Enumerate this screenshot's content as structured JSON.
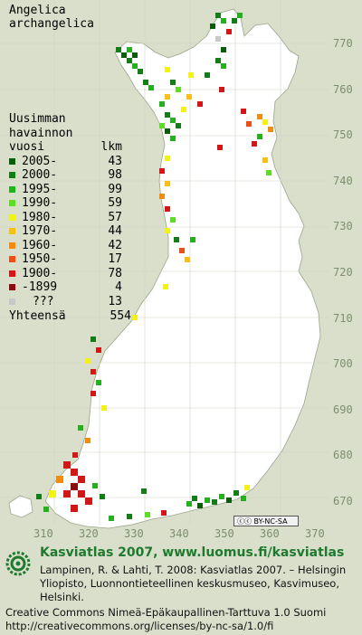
{
  "species": {
    "line1": "Angelica",
    "line2": "archangelica"
  },
  "legend": {
    "header": [
      "Uusimman",
      "havainnon"
    ],
    "col_left": "vuosi",
    "col_right": "lkm",
    "rows": [
      {
        "label": "2005-",
        "count": "43",
        "color": "#0a5e0a"
      },
      {
        "label": "2000-",
        "count": "98",
        "color": "#157d15"
      },
      {
        "label": "1995-",
        "count": "99",
        "color": "#26b01f"
      },
      {
        "label": "1990-",
        "count": "59",
        "color": "#5edc28"
      },
      {
        "label": "1980-",
        "count": "57",
        "color": "#f2f21a"
      },
      {
        "label": "1970-",
        "count": "44",
        "color": "#f6c01a"
      },
      {
        "label": "1960-",
        "count": "42",
        "color": "#f08c12"
      },
      {
        "label": "1950-",
        "count": "17",
        "color": "#e8501a"
      },
      {
        "label": "1900-",
        "count": "78",
        "color": "#d01818"
      },
      {
        "label": "-1899",
        "count": "4",
        "color": "#8a0e0e"
      },
      {
        "label": "???",
        "count": "13",
        "color": "#c8c8c8"
      }
    ],
    "total_label": "Yhteensä",
    "total_count": "554"
  },
  "axis": {
    "y_ticks": [
      "770",
      "760",
      "750",
      "740",
      "730",
      "720",
      "710",
      "700",
      "690",
      "680",
      "670"
    ],
    "x_ticks": [
      "310",
      "320",
      "330",
      "340",
      "350",
      "360",
      "370"
    ]
  },
  "cc_badge": "BY-NC-SA",
  "footer": {
    "title": "Kasviatlas 2007, www.luomus.fi/kasviatlas",
    "citation": "Lampinen, R. & Lahti, T. 2008: Kasviatlas 2007. – Helsingin Yliopisto, Luonnontieteellinen keskusmuseo, Kasvimuseo, Helsinki.",
    "license_line1": "Creative Commons Nimeä-Epäkaupallinen-Tarttuva 1.0 Suomi",
    "license_line2": "http://creativecommons.org/licenses/by-nc-sa/1.0/fi"
  },
  "colors": {
    "background": "#d9dfcb",
    "land": "#ffffff",
    "grid": "#d0d0d0",
    "brand_green": "#1f7a2f"
  }
}
